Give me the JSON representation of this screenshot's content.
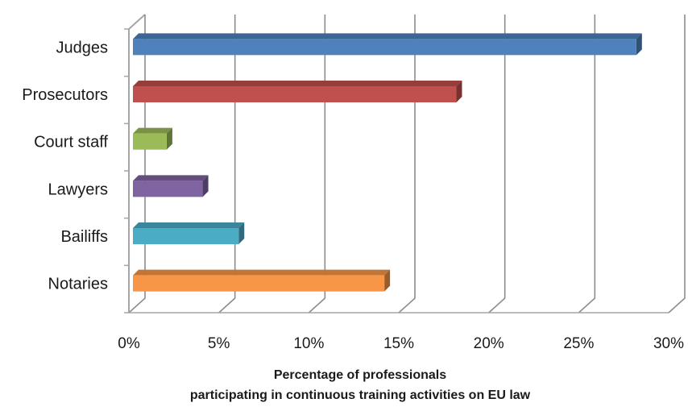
{
  "chart_data": {
    "type": "bar",
    "orientation": "horizontal",
    "style": "3d",
    "categories": [
      "Judges",
      "Prosecutors",
      "Court staff",
      "Lawyers",
      "Bailiffs",
      "Notaries"
    ],
    "values": [
      28.2,
      18.2,
      2.1,
      4.1,
      6.1,
      14.2
    ],
    "colors": [
      "#4f81bd",
      "#c0504d",
      "#9bbb59",
      "#8064a2",
      "#4bacc6",
      "#f79646"
    ],
    "xlim": [
      0,
      30
    ],
    "ticks": [
      0,
      5,
      10,
      15,
      20,
      25,
      30
    ],
    "tick_labels": [
      "0%",
      "5%",
      "10%",
      "15%",
      "20%",
      "25%",
      "30%"
    ],
    "xlabel_line1": "Percentage of professionals",
    "xlabel_line2": "participating in continuous training activities on EU law",
    "grid": true
  }
}
